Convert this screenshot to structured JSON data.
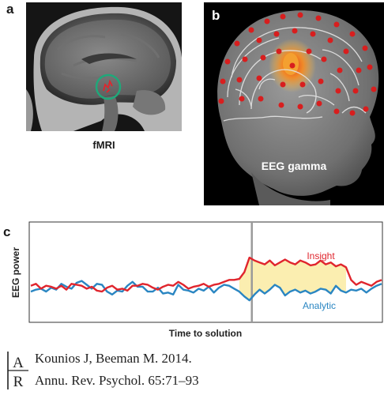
{
  "panels": {
    "a": {
      "letter": "a",
      "caption": "fMRI"
    },
    "b": {
      "letter": "b",
      "caption": "EEG gamma"
    },
    "c": {
      "letter": "c"
    }
  },
  "colors": {
    "insight": "#e0252d",
    "analytic": "#2a86c2",
    "highlight": "#fbeeb0",
    "marker_line": "#9a9a9a",
    "electrode": "#d81e1e"
  },
  "chart_data": {
    "type": "line",
    "xlabel": "Time to solution",
    "ylabel": "EEG power",
    "x_ticks_shown": false,
    "y_ticks_shown": false,
    "solution_marker": 0.63,
    "series": [
      {
        "name": "Insight",
        "values": [
          0.36,
          0.38,
          0.33,
          0.36,
          0.35,
          0.33,
          0.36,
          0.32,
          0.38,
          0.37,
          0.36,
          0.33,
          0.35,
          0.31,
          0.3,
          0.34,
          0.36,
          0.32,
          0.33,
          0.31,
          0.36,
          0.36,
          0.38,
          0.37,
          0.34,
          0.32,
          0.35,
          0.37,
          0.36,
          0.4,
          0.37,
          0.33,
          0.35,
          0.36,
          0.38,
          0.35,
          0.37,
          0.38,
          0.4,
          0.42,
          0.42,
          0.43,
          0.5,
          0.65,
          0.62,
          0.6,
          0.58,
          0.62,
          0.57,
          0.6,
          0.63,
          0.6,
          0.58,
          0.62,
          0.6,
          0.57,
          0.58,
          0.62,
          0.58,
          0.6,
          0.56,
          0.58,
          0.55,
          0.42,
          0.37,
          0.4,
          0.38,
          0.36,
          0.4,
          0.42
        ]
      },
      {
        "name": "Analytic",
        "values": [
          0.3,
          0.32,
          0.33,
          0.3,
          0.34,
          0.32,
          0.38,
          0.35,
          0.33,
          0.39,
          0.41,
          0.37,
          0.33,
          0.38,
          0.37,
          0.3,
          0.27,
          0.31,
          0.3,
          0.36,
          0.4,
          0.35,
          0.35,
          0.3,
          0.3,
          0.34,
          0.28,
          0.29,
          0.27,
          0.37,
          0.32,
          0.31,
          0.29,
          0.33,
          0.31,
          0.35,
          0.29,
          0.34,
          0.37,
          0.36,
          0.33,
          0.3,
          0.25,
          0.21,
          0.27,
          0.32,
          0.28,
          0.32,
          0.37,
          0.34,
          0.26,
          0.3,
          0.32,
          0.29,
          0.31,
          0.28,
          0.3,
          0.33,
          0.32,
          0.28,
          0.36,
          0.31,
          0.29,
          0.32,
          0.31,
          0.33,
          0.29,
          0.33,
          0.36,
          0.38
        ]
      }
    ],
    "annotations": [
      "Insight",
      "Analytic"
    ]
  },
  "citation": {
    "logo_text": "AR",
    "line1": "Kounios J, Beeman M. 2014.",
    "line2": "Annu. Rev. Psychol. 65:71–93"
  }
}
